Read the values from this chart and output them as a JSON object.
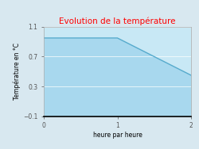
{
  "title": "Evolution de la température",
  "title_color": "#ff0000",
  "xlabel": "heure par heure",
  "ylabel": "Température en °C",
  "background_color": "#d8e8f0",
  "plot_background_color": "#c8e8f5",
  "line_color": "#55aacc",
  "fill_color": "#a8d8ee",
  "line_width": 1.0,
  "x_data": [
    0,
    1,
    2
  ],
  "y_data": [
    0.95,
    0.95,
    0.45
  ],
  "ylim": [
    -0.1,
    1.1
  ],
  "xlim": [
    0,
    2
  ],
  "yticks": [
    -0.1,
    0.3,
    0.7,
    1.1
  ],
  "xticks": [
    0,
    1,
    2
  ],
  "title_fontsize": 7.5,
  "label_fontsize": 5.5,
  "tick_fontsize": 5.5,
  "grid_color": "#ffffff",
  "spine_bottom_color": "#000000",
  "spine_other_color": "#aaaaaa"
}
